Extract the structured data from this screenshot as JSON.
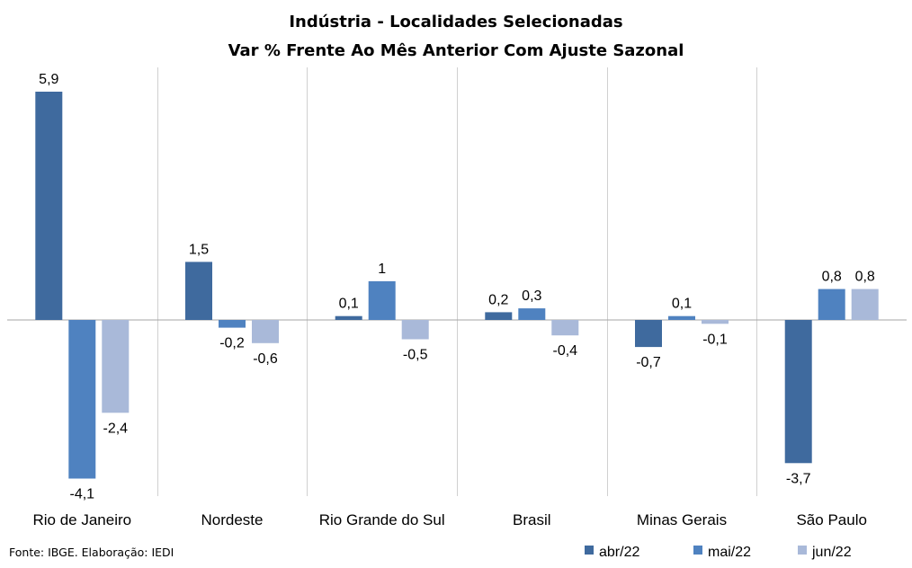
{
  "chart_data": {
    "type": "bar",
    "title": "Indústria - Localidades Selecionadas",
    "subtitle": "Var % Frente Ao Mês Anterior Com Ajuste Sazonal",
    "categories": [
      "Rio de Janeiro",
      "Nordeste",
      "Rio Grande do Sul",
      "Brasil",
      "Minas Gerais",
      "São Paulo"
    ],
    "series": [
      {
        "name": "abr/22",
        "color": "#3f6a9e",
        "values": [
          5.9,
          1.5,
          0.1,
          0.2,
          -0.7,
          -3.7
        ],
        "labels": [
          "5,9",
          "1,5",
          "0,1",
          "0,2",
          "-0,7",
          "-3,7"
        ]
      },
      {
        "name": "mai/22",
        "color": "#4f82c0",
        "values": [
          -4.1,
          -0.2,
          1.0,
          0.3,
          0.1,
          0.8
        ],
        "labels": [
          "-4,1",
          "-0,2",
          "1",
          "0,3",
          "0,1",
          "0,8"
        ]
      },
      {
        "name": "jun/22",
        "color": "#a9b9d9",
        "values": [
          -2.4,
          -0.6,
          -0.5,
          -0.4,
          -0.1,
          0.8
        ],
        "labels": [
          "-2,4",
          "-0,6",
          "-0,5",
          "-0,4",
          "-0,1",
          "0,8"
        ]
      }
    ],
    "ylim": [
      -4.4,
      6.55
    ],
    "grid": false,
    "category_separators": true,
    "legend_position": "bottom-right"
  },
  "source_note": "Fonte: IBGE. Elaboração: IEDI"
}
